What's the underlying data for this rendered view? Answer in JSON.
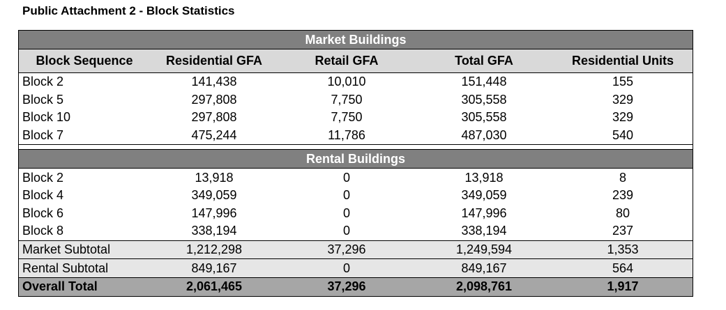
{
  "title": "Public Attachment 2 - Block Statistics",
  "market_header": "Market Buildings",
  "rental_header": "Rental Buildings",
  "columns": [
    "Block Sequence",
    "Residential GFA",
    "Retail GFA",
    "Total GFA",
    "Residential Units"
  ],
  "market_rows": [
    [
      "Block 2",
      "141,438",
      "10,010",
      "151,448",
      "155"
    ],
    [
      "Block 5",
      "297,808",
      "7,750",
      "305,558",
      "329"
    ],
    [
      "Block 10",
      "297,808",
      "7,750",
      "305,558",
      "329"
    ],
    [
      "Block 7",
      "475,244",
      "11,786",
      "487,030",
      "540"
    ]
  ],
  "rental_rows": [
    [
      "Block 2",
      "13,918",
      "0",
      "13,918",
      "8"
    ],
    [
      "Block 4",
      "349,059",
      "0",
      "349,059",
      "239"
    ],
    [
      "Block 6",
      "147,996",
      "0",
      "147,996",
      "80"
    ],
    [
      "Block 8",
      "338,194",
      "0",
      "338,194",
      "237"
    ]
  ],
  "market_subtotal": [
    "Market Subtotal",
    "1,212,298",
    "37,296",
    "1,249,594",
    "1,353"
  ],
  "rental_subtotal": [
    "Rental Subtotal",
    "849,167",
    "0",
    "849,167",
    "564"
  ],
  "overall_total": [
    "Overall Total",
    "2,061,465",
    "37,296",
    "2,098,761",
    "1,917"
  ]
}
